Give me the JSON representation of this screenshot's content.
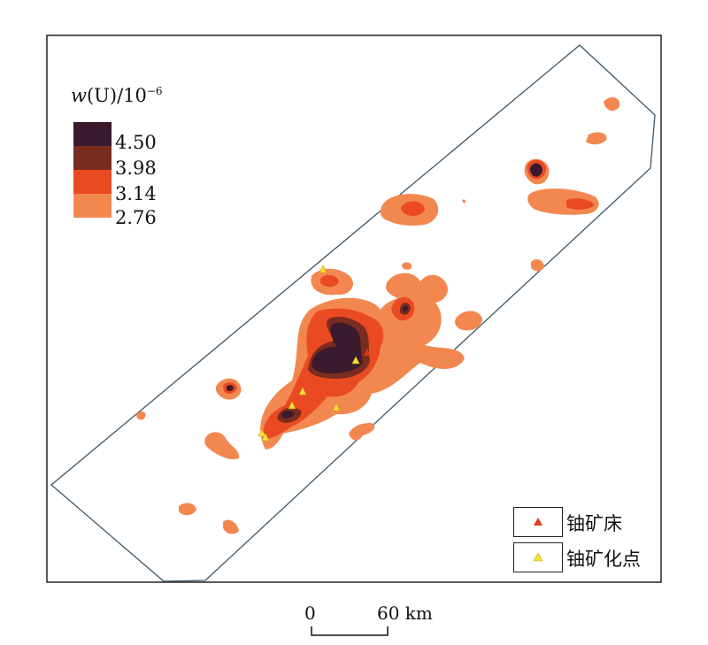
{
  "legend": {
    "title_var": "w",
    "title_rest": "(U)/10",
    "title_exp": "−6",
    "items": [
      {
        "label": "4.50",
        "color": "#3a1a2c"
      },
      {
        "label": "3.98",
        "color": "#7a2c1e"
      },
      {
        "label": "3.14",
        "color": "#ea4a22"
      },
      {
        "label": "2.76",
        "color": "#f28850"
      }
    ]
  },
  "markers": [
    {
      "label": "铀矿床",
      "color": "#e03a1e"
    },
    {
      "label": "铀矿化点",
      "color": "#f4e03a"
    }
  ],
  "scale": {
    "start": "0",
    "end": "60 km"
  },
  "colors": {
    "outline": "#3d5566",
    "level1": "#f28850",
    "level2": "#ea4a22",
    "level3": "#7a2c1e",
    "level4": "#3a1a2c"
  }
}
